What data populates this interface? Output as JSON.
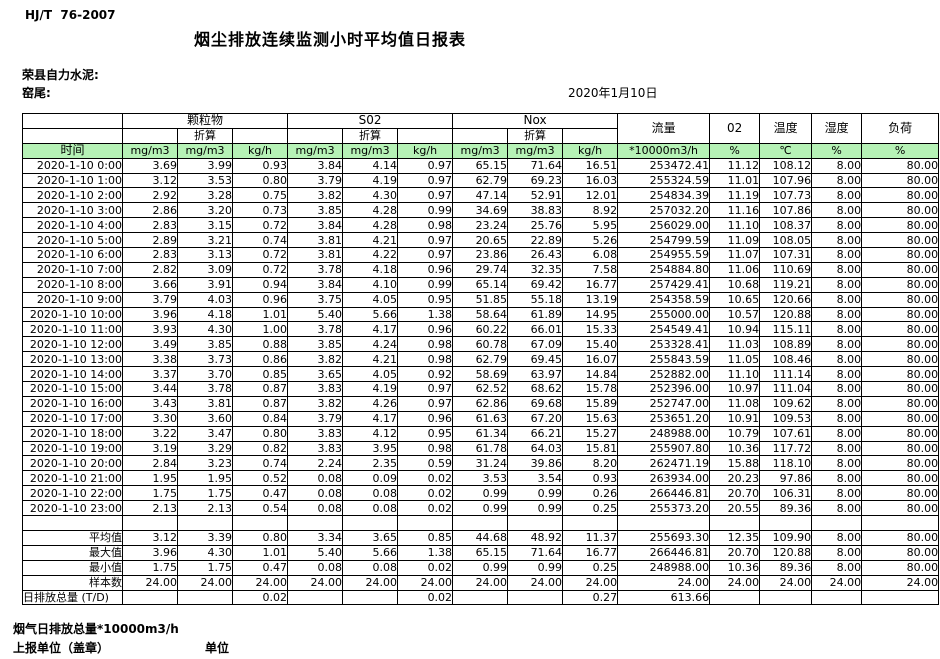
{
  "meta": {
    "standard": "HJ/T  76-2007",
    "title": "烟尘排放连续监测小时平均值日报表",
    "company": "荣县自力水泥:",
    "location": "窑尾:",
    "date": "2020年1月10日"
  },
  "table": {
    "header": {
      "time_label": "时间",
      "converted_label": "折算",
      "groups": [
        {
          "name": "颗粒物"
        },
        {
          "name": "S02"
        },
        {
          "name": "Nox"
        }
      ],
      "flow_label": "流量",
      "o2_label": "02",
      "temp_label": "温度",
      "humidity_label": "湿度",
      "load_label": "负荷"
    },
    "units": [
      "mg/m3",
      "mg/m3",
      "kg/h",
      "mg/m3",
      "mg/m3",
      "kg/h",
      "mg/m3",
      "mg/m3",
      "kg/h",
      "*10000m3/h",
      "%",
      "℃",
      "%",
      "%"
    ],
    "rows": [
      [
        "2020-1-10 0:00",
        "3.69",
        "3.99",
        "0.93",
        "3.84",
        "4.14",
        "0.97",
        "65.15",
        "71.64",
        "16.51",
        "253472.41",
        "11.12",
        "108.12",
        "8.00",
        "80.00"
      ],
      [
        "2020-1-10 1:00",
        "3.12",
        "3.53",
        "0.80",
        "3.79",
        "4.19",
        "0.97",
        "62.79",
        "69.23",
        "16.03",
        "255324.59",
        "11.01",
        "107.96",
        "8.00",
        "80.00"
      ],
      [
        "2020-1-10 2:00",
        "2.92",
        "3.28",
        "0.75",
        "3.82",
        "4.30",
        "0.97",
        "47.14",
        "52.91",
        "12.01",
        "254834.39",
        "11.19",
        "107.73",
        "8.00",
        "80.00"
      ],
      [
        "2020-1-10 3:00",
        "2.86",
        "3.20",
        "0.73",
        "3.85",
        "4.28",
        "0.99",
        "34.69",
        "38.83",
        "8.92",
        "257032.20",
        "11.16",
        "107.86",
        "8.00",
        "80.00"
      ],
      [
        "2020-1-10 4:00",
        "2.83",
        "3.15",
        "0.72",
        "3.84",
        "4.28",
        "0.98",
        "23.24",
        "25.76",
        "5.95",
        "256029.00",
        "11.10",
        "108.37",
        "8.00",
        "80.00"
      ],
      [
        "2020-1-10 5:00",
        "2.89",
        "3.21",
        "0.74",
        "3.81",
        "4.21",
        "0.97",
        "20.65",
        "22.89",
        "5.26",
        "254799.59",
        "11.09",
        "108.05",
        "8.00",
        "80.00"
      ],
      [
        "2020-1-10 6:00",
        "2.83",
        "3.13",
        "0.72",
        "3.81",
        "4.22",
        "0.97",
        "23.86",
        "26.43",
        "6.08",
        "254955.59",
        "11.07",
        "107.31",
        "8.00",
        "80.00"
      ],
      [
        "2020-1-10 7:00",
        "2.82",
        "3.09",
        "0.72",
        "3.78",
        "4.18",
        "0.96",
        "29.74",
        "32.35",
        "7.58",
        "254884.80",
        "11.06",
        "110.69",
        "8.00",
        "80.00"
      ],
      [
        "2020-1-10 8:00",
        "3.66",
        "3.91",
        "0.94",
        "3.84",
        "4.10",
        "0.99",
        "65.14",
        "69.42",
        "16.77",
        "257429.41",
        "10.68",
        "119.21",
        "8.00",
        "80.00"
      ],
      [
        "2020-1-10 9:00",
        "3.79",
        "4.03",
        "0.96",
        "3.75",
        "4.05",
        "0.95",
        "51.85",
        "55.18",
        "13.19",
        "254358.59",
        "10.65",
        "120.66",
        "8.00",
        "80.00"
      ],
      [
        "2020-1-10 10:00",
        "3.96",
        "4.18",
        "1.01",
        "5.40",
        "5.66",
        "1.38",
        "58.64",
        "61.89",
        "14.95",
        "255000.00",
        "10.57",
        "120.88",
        "8.00",
        "80.00"
      ],
      [
        "2020-1-10 11:00",
        "3.93",
        "4.30",
        "1.00",
        "3.78",
        "4.17",
        "0.96",
        "60.22",
        "66.01",
        "15.33",
        "254549.41",
        "10.94",
        "115.11",
        "8.00",
        "80.00"
      ],
      [
        "2020-1-10 12:00",
        "3.49",
        "3.85",
        "0.88",
        "3.85",
        "4.24",
        "0.98",
        "60.78",
        "67.09",
        "15.40",
        "253328.41",
        "11.03",
        "108.89",
        "8.00",
        "80.00"
      ],
      [
        "2020-1-10 13:00",
        "3.38",
        "3.73",
        "0.86",
        "3.82",
        "4.21",
        "0.98",
        "62.79",
        "69.45",
        "16.07",
        "255843.59",
        "11.05",
        "108.46",
        "8.00",
        "80.00"
      ],
      [
        "2020-1-10 14:00",
        "3.37",
        "3.70",
        "0.85",
        "3.65",
        "4.05",
        "0.92",
        "58.69",
        "63.97",
        "14.84",
        "252882.00",
        "11.10",
        "111.14",
        "8.00",
        "80.00"
      ],
      [
        "2020-1-10 15:00",
        "3.44",
        "3.78",
        "0.87",
        "3.83",
        "4.19",
        "0.97",
        "62.52",
        "68.62",
        "15.78",
        "252396.00",
        "10.97",
        "111.04",
        "8.00",
        "80.00"
      ],
      [
        "2020-1-10 16:00",
        "3.43",
        "3.81",
        "0.87",
        "3.82",
        "4.26",
        "0.97",
        "62.86",
        "69.68",
        "15.89",
        "252747.00",
        "11.08",
        "109.62",
        "8.00",
        "80.00"
      ],
      [
        "2020-1-10 17:00",
        "3.30",
        "3.60",
        "0.84",
        "3.79",
        "4.17",
        "0.96",
        "61.63",
        "67.20",
        "15.63",
        "253651.20",
        "10.91",
        "109.53",
        "8.00",
        "80.00"
      ],
      [
        "2020-1-10 18:00",
        "3.22",
        "3.47",
        "0.80",
        "3.83",
        "4.12",
        "0.95",
        "61.34",
        "66.21",
        "15.27",
        "248988.00",
        "10.79",
        "107.61",
        "8.00",
        "80.00"
      ],
      [
        "2020-1-10 19:00",
        "3.19",
        "3.29",
        "0.82",
        "3.83",
        "3.95",
        "0.98",
        "61.78",
        "64.03",
        "15.81",
        "255907.80",
        "10.36",
        "117.72",
        "8.00",
        "80.00"
      ],
      [
        "2020-1-10 20:00",
        "2.84",
        "3.23",
        "0.74",
        "2.24",
        "2.35",
        "0.59",
        "31.24",
        "39.86",
        "8.20",
        "262471.19",
        "15.88",
        "118.10",
        "8.00",
        "80.00"
      ],
      [
        "2020-1-10 21:00",
        "1.95",
        "1.95",
        "0.52",
        "0.08",
        "0.09",
        "0.02",
        "3.53",
        "3.54",
        "0.93",
        "263934.00",
        "20.23",
        "97.86",
        "8.00",
        "80.00"
      ],
      [
        "2020-1-10 22:00",
        "1.75",
        "1.75",
        "0.47",
        "0.08",
        "0.08",
        "0.02",
        "0.99",
        "0.99",
        "0.26",
        "266446.81",
        "20.70",
        "106.31",
        "8.00",
        "80.00"
      ],
      [
        "2020-1-10 23:00",
        "2.13",
        "2.13",
        "0.54",
        "0.08",
        "0.08",
        "0.02",
        "0.99",
        "0.99",
        "0.25",
        "255373.20",
        "20.55",
        "89.36",
        "8.00",
        "80.00"
      ]
    ],
    "summary_rows": [
      [
        "平均值",
        "3.12",
        "3.39",
        "0.80",
        "3.34",
        "3.65",
        "0.85",
        "44.68",
        "48.92",
        "11.37",
        "255693.30",
        "12.35",
        "109.90",
        "8.00",
        "80.00"
      ],
      [
        "最大值",
        "3.96",
        "4.30",
        "1.01",
        "5.40",
        "5.66",
        "1.38",
        "65.15",
        "71.64",
        "16.77",
        "266446.81",
        "20.70",
        "120.88",
        "8.00",
        "80.00"
      ],
      [
        "最小值",
        "1.75",
        "1.75",
        "0.47",
        "0.08",
        "0.08",
        "0.02",
        "0.99",
        "0.99",
        "0.25",
        "248988.00",
        "10.36",
        "89.36",
        "8.00",
        "80.00"
      ],
      [
        "样本数",
        "24.00",
        "24.00",
        "24.00",
        "24.00",
        "24.00",
        "24.00",
        "24.00",
        "24.00",
        "24.00",
        "24.00",
        "24.00",
        "24.00",
        "24.00",
        "24.00"
      ]
    ],
    "total_row": {
      "label": "日排放总量 (T/D)",
      "values": [
        "",
        "",
        "0.02",
        "",
        "",
        "0.02",
        "",
        "",
        "0.27",
        "613.66",
        "",
        "",
        "",
        ""
      ]
    }
  },
  "footer": {
    "flue_gas_total": "烟气日排放总量*10000m3/h",
    "report_unit": "上报单位（盖章）",
    "unit": "单位"
  },
  "colors": {
    "header_green": "#b6f2b6",
    "border": "#000000"
  }
}
